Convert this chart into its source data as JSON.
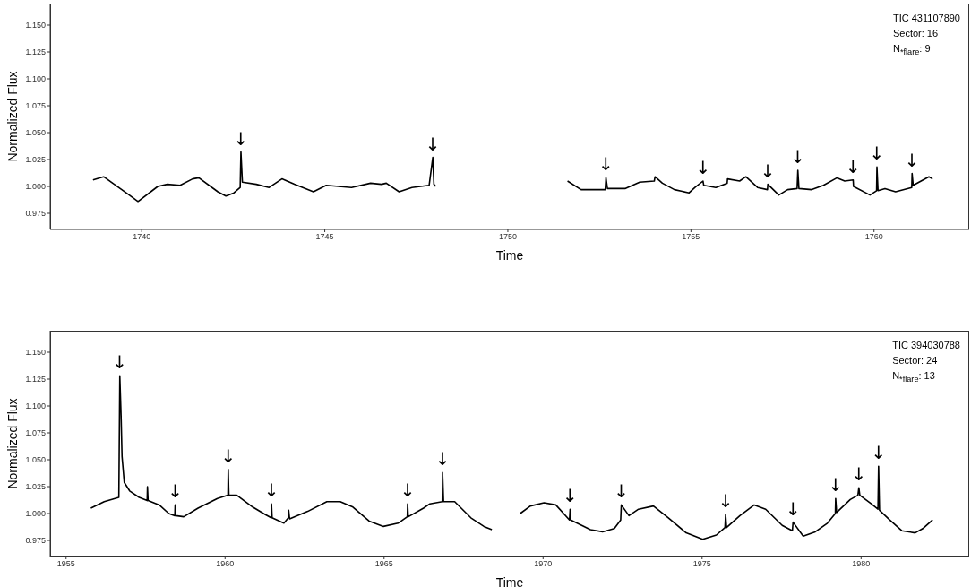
{
  "chart_data": [
    {
      "type": "line",
      "xlabel": "Time",
      "ylabel": "Normalized Flux",
      "xlim": [
        1737.5,
        1762.6
      ],
      "ylim": [
        0.96,
        1.17
      ],
      "xticks": [
        1740,
        1745,
        1750,
        1755,
        1760
      ],
      "yticks": [
        0.975,
        {
          "value": 1.0,
          "label": "1.000"
        },
        1.025,
        {
          "value": 1.05,
          "label": "1.050"
        },
        1.075,
        {
          "value": 1.1,
          "label": "1.100"
        },
        1.125,
        {
          "value": 1.15,
          "label": "1.150"
        }
      ],
      "grid": false,
      "legend": false,
      "marker": "none",
      "line_style": "solid",
      "x": [
        1738.67,
        1738.96,
        1739.66,
        1739.9,
        1740.44,
        1740.7,
        1741.05,
        1741.39,
        1741.56,
        1742.08,
        1742.3,
        1742.52,
        1742.69,
        1742.71,
        1742.75,
        1743.13,
        1743.48,
        1743.83,
        1744.17,
        1744.69,
        1745.04,
        1745.38,
        1745.73,
        1746.25,
        1746.55,
        1746.68,
        1747.03,
        1747.38,
        1747.85,
        1747.95,
        1747.98,
        1748.03,
        1750,
        1751.63,
        1752.0,
        1752.66,
        1752.68,
        1752.72,
        1753.2,
        1753.6,
        1754.0,
        1754.02,
        1754.22,
        1754.55,
        1754.95,
        1755.11,
        1755.33,
        1755.35,
        1755.68,
        1755.99,
        1756.0,
        1756.33,
        1756.5,
        1756.82,
        1757.09,
        1757.1,
        1757.4,
        1757.64,
        1757.9,
        1757.92,
        1757.95,
        1758.3,
        1758.62,
        1758.99,
        1759.2,
        1759.43,
        1759.44,
        1759.89,
        1760.07,
        1760.08,
        1760.11,
        1760.3,
        1760.59,
        1761.03,
        1761.04,
        1761.07,
        1761.5,
        1761.6
      ],
      "series": [
        {
          "color": "#000000",
          "values": [
            1.006,
            1.009,
            0.992,
            0.986,
            1.0,
            1.002,
            1.001,
            1.007,
            1.008,
            0.995,
            0.991,
            0.994,
            0.999,
            1.032,
            1.004,
            1.002,
            0.999,
            1.007,
            1.002,
            0.995,
            1.001,
            1.0,
            0.999,
            1.003,
            1.002,
            1.003,
            0.995,
            0.999,
            1.001,
            1.027,
            1.002,
            1.0,
            null,
            1.005,
            0.997,
            0.997,
            1.008,
            0.998,
            0.998,
            1.004,
            1.005,
            1.009,
            1.003,
            0.997,
            0.994,
            0.999,
            1.005,
            1.001,
            0.999,
            1.003,
            1.007,
            1.005,
            1.009,
            0.999,
            0.997,
            1.002,
            0.992,
            0.997,
            0.998,
            1.015,
            0.998,
            0.997,
            1.001,
            1.008,
            1.005,
            1.006,
            1.0,
            0.992,
            0.996,
            1.018,
            0.996,
            0.998,
            0.995,
            0.999,
            1.012,
            1.001,
            1.009,
            1.007
          ]
        }
      ],
      "annotations": [
        "TIC 431107890",
        "Sector: 16",
        "N$_{*flare}$: 9",
        {
          "text": "↓",
          "x": 1742.71,
          "y": 1.032
        },
        {
          "text": "↓",
          "x": 1747.95,
          "y": 1.027
        },
        {
          "text": "↓",
          "x": 1752.68,
          "y": 1.008
        },
        {
          "text": "↓",
          "x": 1755.33,
          "y": 1.005
        },
        {
          "text": "↓",
          "x": 1757.1,
          "y": 1.002
        },
        {
          "text": "↓",
          "x": 1757.92,
          "y": 1.015
        },
        {
          "text": "↓",
          "x": 1759.43,
          "y": 1.006
        },
        {
          "text": "↓",
          "x": 1760.08,
          "y": 1.018
        },
        {
          "text": "↓",
          "x": 1761.04,
          "y": 1.012
        }
      ]
    },
    {
      "type": "line",
      "xlabel": "Time",
      "ylabel": "Normalized Flux",
      "xlim": [
        1954.5,
        1983.4
      ],
      "ylim": [
        0.96,
        1.17
      ],
      "xticks": [
        1955,
        1960,
        1965,
        1970,
        1975,
        1980
      ],
      "yticks": [
        0.975,
        {
          "value": 1.0,
          "label": "1.000"
        },
        1.025,
        {
          "value": 1.05,
          "label": "1.050"
        },
        1.075,
        {
          "value": 1.1,
          "label": "1.100"
        },
        1.125,
        {
          "value": 1.15,
          "label": "1.150"
        }
      ],
      "grid": false,
      "legend": false,
      "marker": "none",
      "line_style": "solid",
      "x": [
        1955.78,
        1956.2,
        1956.66,
        1956.69,
        1956.73,
        1956.76,
        1956.83,
        1957.0,
        1957.3,
        1957.55,
        1957.56,
        1957.58,
        1957.93,
        1958.23,
        1958.42,
        1958.43,
        1958.45,
        1958.7,
        1959.15,
        1959.76,
        1960.09,
        1960.1,
        1960.12,
        1960.37,
        1960.87,
        1961.27,
        1961.45,
        1961.46,
        1961.48,
        1961.85,
        1961.99,
        1962.0,
        1962.03,
        1962.6,
        1963.2,
        1963.62,
        1964.02,
        1964.53,
        1964.98,
        1965.44,
        1965.73,
        1965.74,
        1965.76,
        1966.24,
        1966.44,
        1966.83,
        1966.84,
        1966.87,
        1967.22,
        1967.73,
        1968.14,
        1968.39,
        1968.8,
        1969.28,
        1969.6,
        1970.03,
        1970.4,
        1970.83,
        1970.85,
        1970.87,
        1971.49,
        1971.87,
        1972.24,
        1972.44,
        1972.46,
        1972.7,
        1973.0,
        1973.47,
        1973.94,
        1974.5,
        1975.02,
        1975.45,
        1975.72,
        1975.74,
        1975.77,
        1976.19,
        1976.64,
        1977.0,
        1977.52,
        1977.84,
        1977.86,
        1978.18,
        1978.56,
        1978.94,
        1979.19,
        1979.2,
        1979.23,
        1979.66,
        1979.9,
        1979.93,
        1979.96,
        1980.32,
        1980.53,
        1980.55,
        1980.58,
        1980.9,
        1981.28,
        1981.7,
        1981.94,
        1982.25
      ],
      "series": [
        {
          "color": "#000000",
          "values": [
            1.005,
            1.011,
            1.015,
            1.128,
            1.091,
            1.053,
            1.029,
            1.021,
            1.015,
            1.012,
            1.025,
            1.012,
            1.008,
            1.0,
            0.998,
            1.008,
            0.998,
            0.997,
            1.005,
            1.014,
            1.017,
            1.041,
            1.017,
            1.017,
            1.006,
            0.999,
            0.996,
            1.009,
            0.996,
            0.991,
            0.996,
            1.003,
            0.995,
            1.002,
            1.011,
            1.011,
            1.006,
            0.993,
            0.988,
            0.991,
            0.997,
            1.009,
            0.997,
            1.005,
            1.009,
            1.011,
            1.038,
            1.011,
            1.011,
            0.996,
            0.988,
            0.985,
            null,
            1.0,
            1.007,
            1.01,
            1.008,
            0.994,
            1.004,
            0.994,
            0.985,
            0.983,
            0.986,
            0.994,
            1.008,
            0.998,
            1.004,
            1.007,
            0.996,
            0.982,
            0.976,
            0.98,
            0.987,
            0.999,
            0.987,
            0.998,
            1.008,
            1.004,
            0.989,
            0.984,
            0.992,
            0.979,
            0.983,
            0.991,
            1.0,
            1.014,
            1.001,
            1.013,
            1.017,
            1.024,
            1.017,
            1.009,
            1.004,
            1.044,
            1.003,
            0.994,
            0.984,
            0.982,
            0.986,
            0.994
          ]
        }
      ],
      "annotations": [
        "TIC 394030788",
        "Sector: 24",
        "N$_{*flare}$: 13",
        {
          "text": "↓",
          "x": 1956.69,
          "y": 1.128
        },
        {
          "text": "↓",
          "x": 1958.43,
          "y": 1.008
        },
        {
          "text": "↓",
          "x": 1960.1,
          "y": 1.041
        },
        {
          "text": "↓",
          "x": 1961.46,
          "y": 1.009
        },
        {
          "text": "↓",
          "x": 1965.74,
          "y": 1.009
        },
        {
          "text": "↓",
          "x": 1966.84,
          "y": 1.038
        },
        {
          "text": "↓",
          "x": 1970.85,
          "y": 1.004
        },
        {
          "text": "↓",
          "x": 1972.46,
          "y": 1.008
        },
        {
          "text": "↓",
          "x": 1975.74,
          "y": 0.999
        },
        {
          "text": "↓",
          "x": 1977.86,
          "y": 0.992
        },
        {
          "text": "↓",
          "x": 1979.2,
          "y": 1.014
        },
        {
          "text": "↓",
          "x": 1979.93,
          "y": 1.024
        },
        {
          "text": "↓",
          "x": 1980.55,
          "y": 1.044
        }
      ]
    }
  ]
}
